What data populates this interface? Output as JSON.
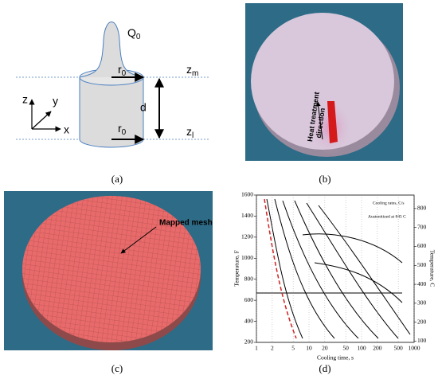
{
  "panels": [
    {
      "caption": "(a)",
      "labels": [
        {
          "text": "Q",
          "sub": "0"
        },
        {
          "text": "r",
          "sub": "0"
        },
        {
          "text": "z",
          "sub": "m"
        },
        {
          "text": "d"
        },
        {
          "text": "z"
        },
        {
          "text": "y"
        },
        {
          "text": "x"
        },
        {
          "text": "r",
          "sub": "0"
        },
        {
          "text": "z",
          "sub": "l"
        }
      ]
    },
    {
      "caption": "(b)",
      "label_lines": [
        "Heat treatment",
        "direction"
      ]
    },
    {
      "caption": "(c)",
      "label": "Mapped mesh"
    },
    {
      "caption": "(d)",
      "y_left_label": "Temperature, F",
      "y_left_ticks": [
        200,
        400,
        600,
        800,
        1000,
        1200,
        1400,
        1600
      ],
      "y_right_label": "Temperature, C",
      "y_right_ticks": [
        100,
        200,
        300,
        400,
        500,
        600,
        700,
        800
      ],
      "x_label": "Cooling time, s",
      "x_ticks": [
        1,
        2,
        5,
        10,
        20,
        50,
        100,
        200,
        500,
        1000
      ],
      "notes": [
        "Cooling rates, C/s",
        "Austenitized at 845 C"
      ]
    }
  ]
}
